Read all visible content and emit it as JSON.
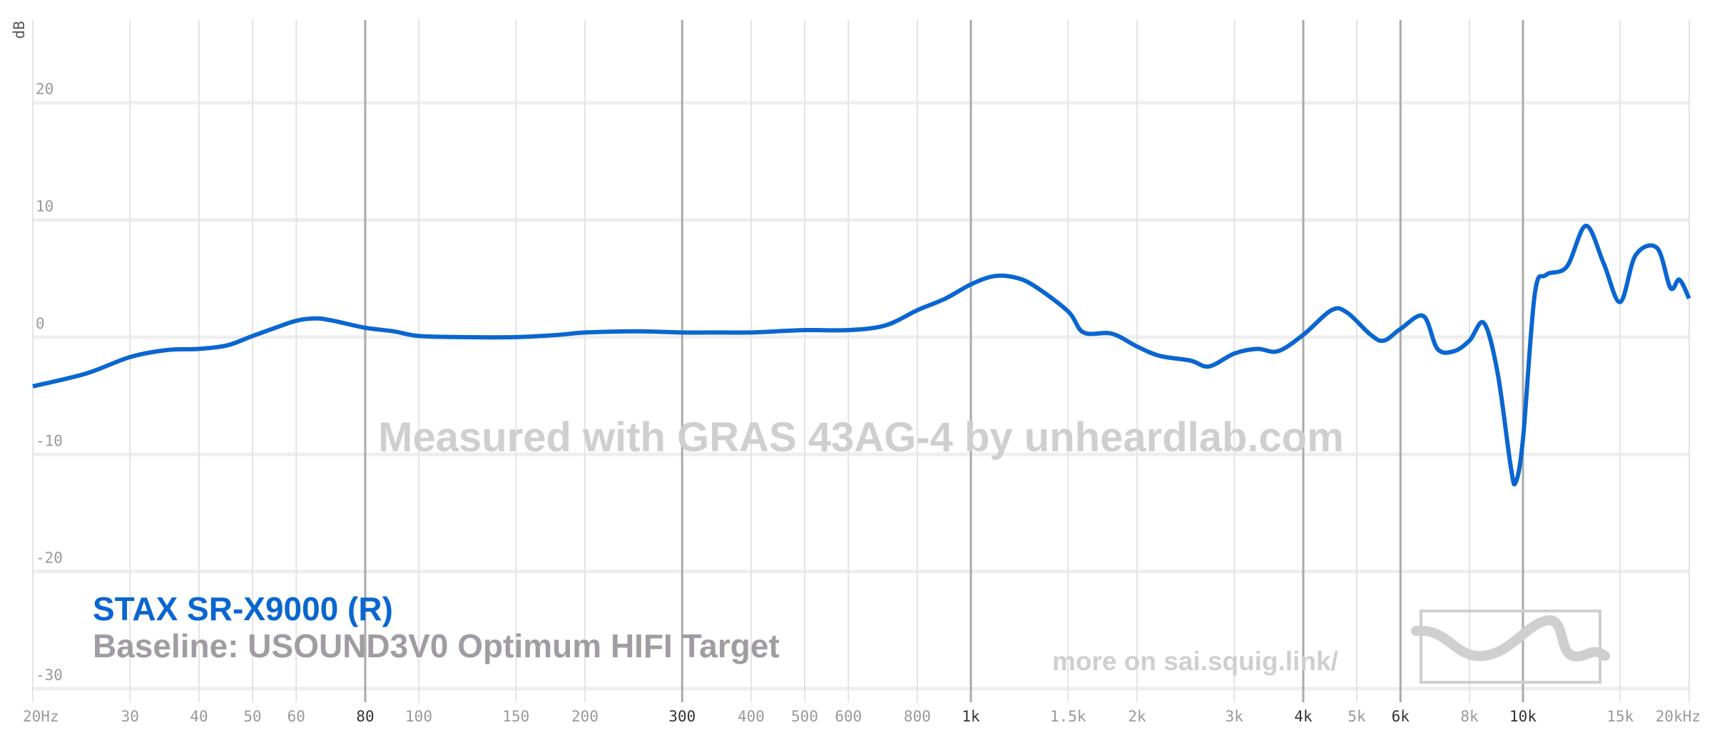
{
  "chart_data": {
    "type": "line",
    "y_label": "dB",
    "watermark": "Measured with GRAS 43AG-4 by unheardlab.com",
    "baseline_label": "Baseline: USOUND3V0 Optimum HIFI Target",
    "footer_link": "more on sai.squig.link/",
    "x_log": true,
    "grid": true,
    "xlim": [
      20,
      20000
    ],
    "ylim": [
      -30,
      25
    ],
    "xticks": [
      {
        "value": 20,
        "label": "20Hz"
      },
      30,
      40,
      50,
      60,
      80,
      100,
      150,
      200,
      300,
      400,
      500,
      600,
      800,
      {
        "value": 1000,
        "label": "1k"
      },
      {
        "value": 1500,
        "label": "1.5k"
      },
      {
        "value": 2000,
        "label": "2k"
      },
      {
        "value": 3000,
        "label": "3k"
      },
      {
        "value": 4000,
        "label": "4k"
      },
      {
        "value": 5000,
        "label": "5k"
      },
      {
        "value": 6000,
        "label": "6k"
      },
      {
        "value": 8000,
        "label": "8k"
      },
      {
        "value": 10000,
        "label": "10k"
      },
      {
        "value": 15000,
        "label": "15k"
      },
      {
        "value": 20000,
        "label": "20kHz"
      }
    ],
    "major_xticks": [
      80,
      300,
      1000,
      4000,
      6000,
      10000
    ],
    "yticks": [
      -30,
      -20,
      -10,
      0,
      10,
      20
    ],
    "x": [
      20,
      25,
      30,
      35,
      40,
      45,
      50,
      55,
      60,
      65,
      70,
      80,
      90,
      100,
      120,
      150,
      180,
      200,
      250,
      300,
      350,
      400,
      500,
      600,
      700,
      800,
      900,
      1000,
      1100,
      1200,
      1300,
      1500,
      1600,
      1800,
      2000,
      2200,
      2500,
      2700,
      3000,
      3300,
      3600,
      4000,
      4500,
      4800,
      5300,
      5600,
      6000,
      6600,
      7000,
      7500,
      8000,
      8500,
      9000,
      9500,
      9700,
      10000,
      10500,
      11000,
      12000,
      13000,
      14000,
      15000,
      16000,
      17500,
      18500,
      19200,
      20000
    ],
    "series": [
      {
        "name": "STAX SR-X9000 (R)",
        "color": "#0a66d0",
        "values": [
          -4.2,
          -3.1,
          -1.7,
          -1.1,
          -1.0,
          -0.7,
          0.1,
          0.8,
          1.4,
          1.6,
          1.4,
          0.8,
          0.5,
          0.1,
          0,
          0,
          0.2,
          0.4,
          0.5,
          0.4,
          0.4,
          0.4,
          0.6,
          0.6,
          1.0,
          2.3,
          3.3,
          4.5,
          5.2,
          5.1,
          4.4,
          2.2,
          0.4,
          0.3,
          -0.8,
          -1.6,
          -2.0,
          -2.5,
          -1.4,
          -1.0,
          -1.2,
          0.2,
          2.3,
          2.1,
          0.2,
          -0.3,
          0.7,
          1.8,
          -1.0,
          -1.2,
          -0.3,
          1.2,
          -3.1,
          -11.0,
          -12.4,
          -8.7,
          3.6,
          5.3,
          6.0,
          9.5,
          6.3,
          3.0,
          7.0,
          7.6,
          4.2,
          4.9,
          3.3
        ]
      }
    ]
  }
}
